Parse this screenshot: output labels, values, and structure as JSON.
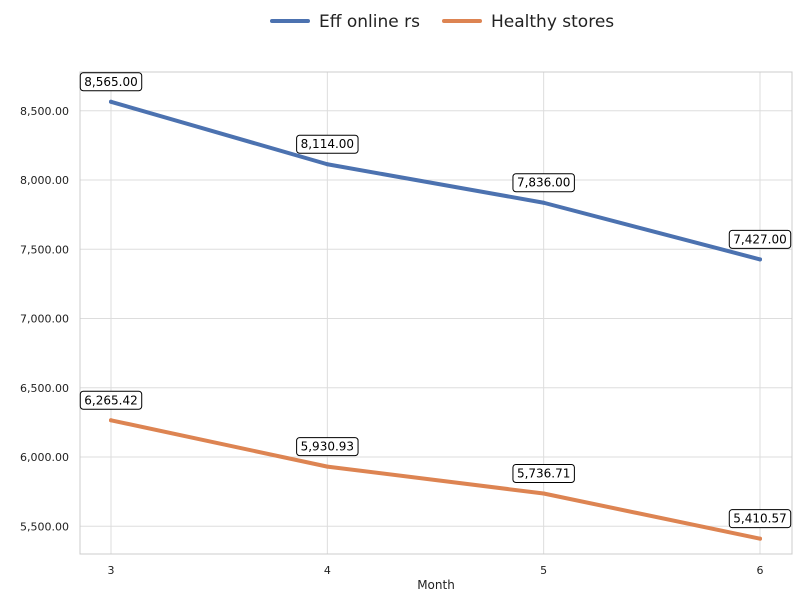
{
  "chart_data": {
    "type": "line",
    "title": "",
    "xlabel": "Month",
    "ylabel": "",
    "x": [
      3,
      4,
      5,
      6
    ],
    "x_tick_labels": [
      "3",
      "4",
      "5",
      "6"
    ],
    "ylim": [
      5300,
      8780
    ],
    "y_ticks": [
      5500,
      6000,
      6500,
      7000,
      7500,
      8000,
      8500
    ],
    "y_tick_labels": [
      "5,500.00",
      "6,000.00",
      "6,500.00",
      "7,000.00",
      "7,500.00",
      "8,000.00",
      "8,500.00"
    ],
    "grid": true,
    "legend_position": "top-center",
    "series": [
      {
        "name": "Eff online rs",
        "color": "#4c72b0",
        "values": [
          8565.0,
          8114.0,
          7836.0,
          7427.0
        ],
        "labels": [
          "8,565.00",
          "8,114.00",
          "7,836.00",
          "7,427.00"
        ]
      },
      {
        "name": "Healthy stores",
        "color": "#dd8452",
        "values": [
          6265.42,
          5930.93,
          5736.71,
          5410.57
        ],
        "labels": [
          "6,265.42",
          "5,930.93",
          "5,736.71",
          "5,410.57"
        ]
      }
    ]
  }
}
